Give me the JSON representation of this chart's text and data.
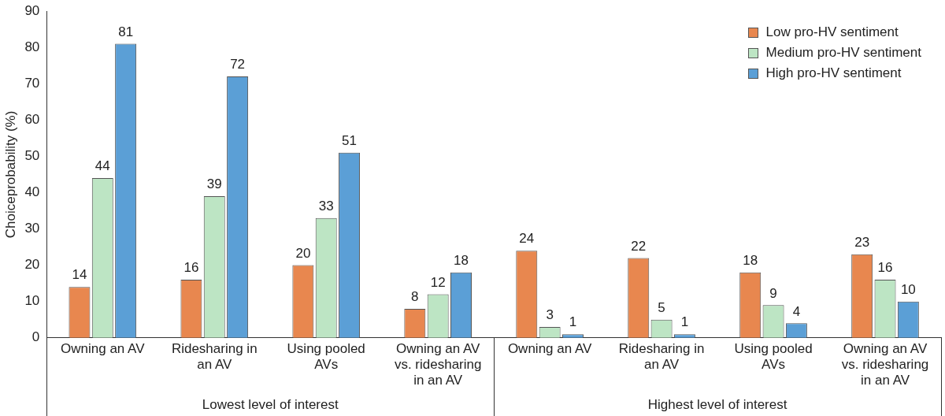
{
  "chart_data": {
    "type": "bar",
    "ylabel": "Choiceprobability (%)",
    "categories": [
      "Owning an AV",
      "Ridesharing in an AV",
      "Using pooled AVs",
      "Owning an AV vs. ridesharing in an AV",
      "Owning an AV",
      "Ridesharing in an AV",
      "Using pooled AVs",
      "Owning an AV vs. ridesharing in an AV"
    ],
    "series": [
      {
        "name": "Low pro-HV sentiment",
        "color": "#e8874f",
        "values": [
          14,
          16,
          20,
          8,
          24,
          22,
          18,
          23
        ]
      },
      {
        "name": "Medium pro-HV sentiment",
        "color": "#bde5c4",
        "values": [
          44,
          39,
          33,
          12,
          3,
          5,
          9,
          16
        ]
      },
      {
        "name": "High pro-HV sentiment",
        "color": "#5b9fd6",
        "values": [
          81,
          72,
          51,
          18,
          1,
          1,
          4,
          10
        ]
      }
    ],
    "ylim": [
      0,
      90
    ],
    "yticks": [
      0,
      10,
      20,
      30,
      40,
      50,
      60,
      70,
      80,
      90
    ],
    "data_labels": true,
    "grid": false,
    "legend": "top right",
    "annotations": [
      "Lowest level of interest",
      "Highest level of interest"
    ]
  }
}
